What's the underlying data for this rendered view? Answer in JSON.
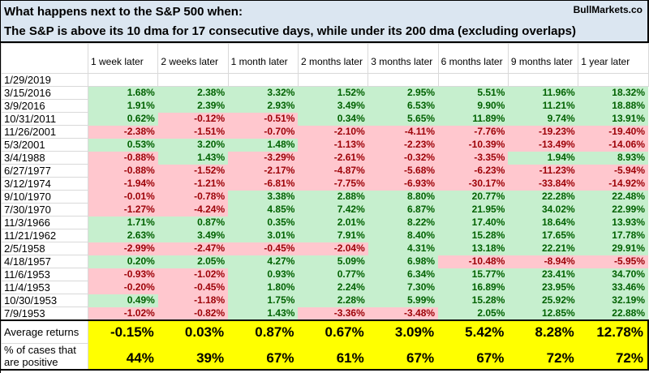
{
  "title": {
    "line1": "What happens next to the S&P 500 when:",
    "line2": "The S&P is above its 10 dma for 17 consecutive days, while under its 200 dma (excluding overlaps)",
    "brand": "BullMarkets.co"
  },
  "colors": {
    "title_bg": "#dbe6f1",
    "positive_bg": "#c6efce",
    "positive_text": "#006100",
    "negative_bg": "#ffc7ce",
    "negative_text": "#9c0006",
    "summary_bg": "#ffff00",
    "gridline": "#d9d9d9"
  },
  "chart_data": {
    "type": "table",
    "columns": [
      "1 week later",
      "2 weeks later",
      "1 month later",
      "2 months later",
      "3 months later",
      "6 months later",
      "9 months later",
      "1 year later"
    ],
    "rows": [
      {
        "date": "1/29/2019",
        "values": [
          "",
          "",
          "",
          "",
          "",
          "",
          "",
          ""
        ]
      },
      {
        "date": "3/15/2016",
        "values": [
          "1.68%",
          "2.38%",
          "3.32%",
          "1.52%",
          "2.95%",
          "5.51%",
          "11.96%",
          "18.32%"
        ]
      },
      {
        "date": "3/9/2016",
        "values": [
          "1.91%",
          "2.39%",
          "2.93%",
          "3.49%",
          "6.53%",
          "9.90%",
          "11.21%",
          "18.88%"
        ]
      },
      {
        "date": "10/31/2011",
        "values": [
          "0.62%",
          "-0.12%",
          "-0.51%",
          "0.34%",
          "5.65%",
          "11.89%",
          "9.74%",
          "13.91%"
        ]
      },
      {
        "date": "11/26/2001",
        "values": [
          "-2.38%",
          "-1.51%",
          "-0.70%",
          "-2.10%",
          "-4.11%",
          "-7.76%",
          "-19.23%",
          "-19.40%"
        ]
      },
      {
        "date": "5/3/2001",
        "values": [
          "0.53%",
          "3.20%",
          "1.48%",
          "-1.13%",
          "-2.23%",
          "-10.39%",
          "-13.49%",
          "-14.06%"
        ]
      },
      {
        "date": "3/4/1988",
        "values": [
          "-0.88%",
          "1.43%",
          "-3.29%",
          "-2.61%",
          "-0.32%",
          "-3.35%",
          "1.94%",
          "8.93%"
        ]
      },
      {
        "date": "6/27/1977",
        "values": [
          "-0.88%",
          "-1.52%",
          "-2.17%",
          "-4.87%",
          "-5.68%",
          "-6.23%",
          "-11.23%",
          "-5.94%"
        ]
      },
      {
        "date": "3/12/1974",
        "values": [
          "-1.94%",
          "-1.21%",
          "-6.81%",
          "-7.75%",
          "-6.93%",
          "-30.17%",
          "-33.84%",
          "-14.92%"
        ]
      },
      {
        "date": "9/10/1970",
        "values": [
          "-0.01%",
          "-0.78%",
          "3.38%",
          "2.88%",
          "8.80%",
          "20.77%",
          "22.28%",
          "22.48%"
        ]
      },
      {
        "date": "7/30/1970",
        "values": [
          "-1.27%",
          "-4.24%",
          "4.85%",
          "7.42%",
          "6.87%",
          "21.95%",
          "34.02%",
          "22.99%"
        ]
      },
      {
        "date": "11/3/1966",
        "values": [
          "1.71%",
          "0.87%",
          "0.35%",
          "2.01%",
          "8.22%",
          "17.40%",
          "18.64%",
          "13.93%"
        ]
      },
      {
        "date": "11/21/1962",
        "values": [
          "2.63%",
          "3.49%",
          "3.01%",
          "7.91%",
          "8.40%",
          "15.28%",
          "17.65%",
          "17.78%"
        ]
      },
      {
        "date": "2/5/1958",
        "values": [
          "-2.99%",
          "-2.47%",
          "-0.45%",
          "-2.04%",
          "4.31%",
          "13.18%",
          "22.21%",
          "29.91%"
        ]
      },
      {
        "date": "4/18/1957",
        "values": [
          "0.20%",
          "2.05%",
          "4.27%",
          "5.09%",
          "6.98%",
          "-10.48%",
          "-8.94%",
          "-5.95%"
        ]
      },
      {
        "date": "11/6/1953",
        "values": [
          "-0.93%",
          "-1.02%",
          "0.93%",
          "0.77%",
          "6.34%",
          "15.77%",
          "23.41%",
          "34.70%"
        ]
      },
      {
        "date": "11/4/1953",
        "values": [
          "-0.20%",
          "-0.45%",
          "1.80%",
          "2.24%",
          "7.30%",
          "16.89%",
          "23.95%",
          "33.46%"
        ]
      },
      {
        "date": "10/30/1953",
        "values": [
          "0.49%",
          "-1.18%",
          "1.75%",
          "2.28%",
          "5.99%",
          "15.28%",
          "25.92%",
          "32.19%"
        ]
      },
      {
        "date": "7/9/1953",
        "values": [
          "-1.02%",
          "-0.82%",
          "1.43%",
          "-3.36%",
          "-3.48%",
          "2.05%",
          "12.85%",
          "22.88%"
        ]
      }
    ],
    "footer": {
      "average_label": "Average returns",
      "average_values": [
        "-0.15%",
        "0.03%",
        "0.87%",
        "0.67%",
        "3.09%",
        "5.42%",
        "8.28%",
        "12.78%"
      ],
      "positive_label": "% of cases that are positive",
      "positive_values": [
        "44%",
        "39%",
        "67%",
        "61%",
        "67%",
        "67%",
        "72%",
        "72%"
      ]
    }
  }
}
